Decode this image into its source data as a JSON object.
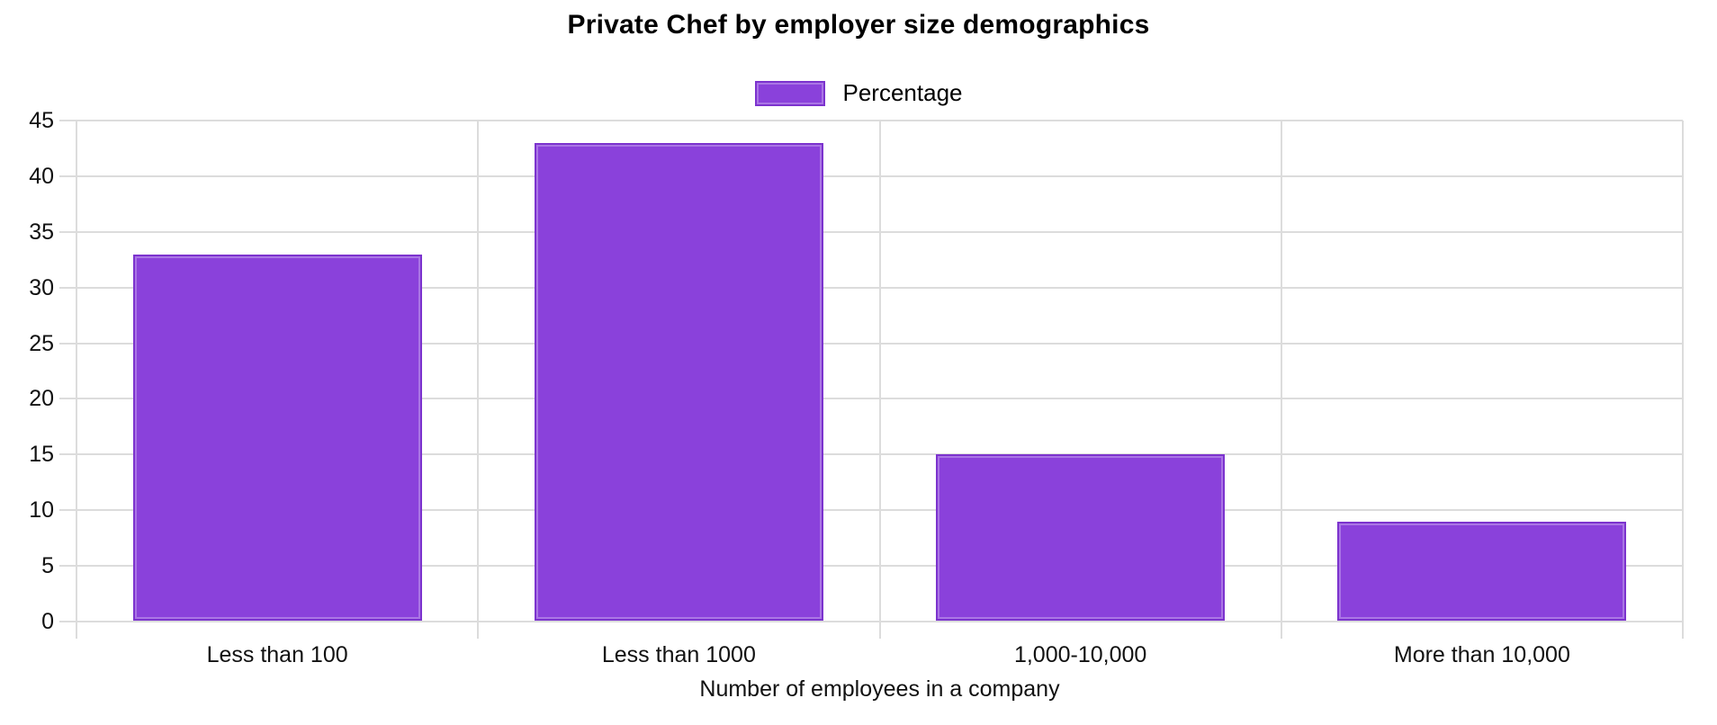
{
  "chart_data": {
    "type": "bar",
    "title": "Private Chef by employer size demographics",
    "xlabel": "Number of employees in a company",
    "ylabel": "",
    "categories": [
      "Less than 100",
      "Less than 1000",
      "1,000-10,000",
      "More than 10,000"
    ],
    "series": [
      {
        "name": "Percentage",
        "values": [
          33,
          43,
          15,
          9
        ]
      }
    ],
    "ylim": [
      0,
      45
    ],
    "yticks": [
      0,
      5,
      10,
      15,
      20,
      25,
      30,
      35,
      40,
      45
    ],
    "grid": true,
    "legend_position": "top-center",
    "colors": {
      "bar_fill": "#8A41DB",
      "bar_border": "#7C33CE",
      "bar_inner_highlight": "rgba(255,255,255,0.28)",
      "gridline": "#DCDCDC",
      "text": "#111111",
      "title_text": "#000000"
    }
  }
}
